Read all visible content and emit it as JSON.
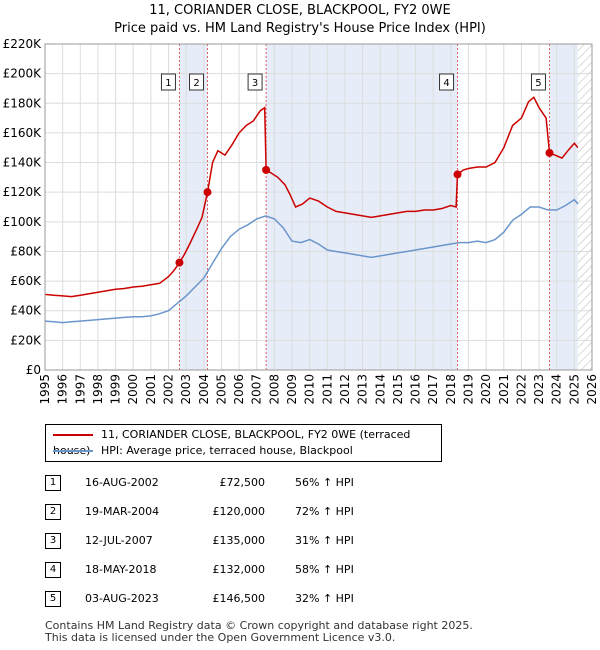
{
  "header": {
    "title": "11, CORIANDER CLOSE, BLACKPOOL, FY2 0WE",
    "subtitle": "Price paid vs. HM Land Registry's House Price Index (HPI)"
  },
  "colors": {
    "price_line": "#cc0000",
    "hpi_line": "#6b96cc",
    "shade": "#e6ecf8",
    "marker_vline": "#e06060",
    "grid": "#dddddd"
  },
  "chart_data": {
    "type": "line",
    "title": "11, CORIANDER CLOSE, BLACKPOOL, FY2 0WE",
    "subtitle": "Price paid vs. HM Land Registry's House Price Index (HPI)",
    "xlim": [
      1995,
      2026
    ],
    "ylim": [
      0,
      220000
    ],
    "grid": true,
    "y_ticks": [
      {
        "value": 0,
        "label": "£0"
      },
      {
        "value": 20000,
        "label": "£20K"
      },
      {
        "value": 40000,
        "label": "£40K"
      },
      {
        "value": 60000,
        "label": "£60K"
      },
      {
        "value": 80000,
        "label": "£80K"
      },
      {
        "value": 100000,
        "label": "£100K"
      },
      {
        "value": 120000,
        "label": "£120K"
      },
      {
        "value": 140000,
        "label": "£140K"
      },
      {
        "value": 160000,
        "label": "£160K"
      },
      {
        "value": 180000,
        "label": "£180K"
      },
      {
        "value": 200000,
        "label": "£200K"
      },
      {
        "value": 220000,
        "label": "£220K"
      }
    ],
    "x_ticks": [
      "1995",
      "1996",
      "1997",
      "1998",
      "1999",
      "2000",
      "2001",
      "2002",
      "2003",
      "2004",
      "2005",
      "2006",
      "2007",
      "2008",
      "2009",
      "2010",
      "2011",
      "2012",
      "2013",
      "2014",
      "2015",
      "2016",
      "2017",
      "2018",
      "2019",
      "2020",
      "2021",
      "2022",
      "2023",
      "2024",
      "2025",
      "2026"
    ],
    "shaded_ranges": [
      [
        2002.62,
        2004.21
      ],
      [
        2007.53,
        2018.38
      ],
      [
        2023.59,
        2025.2
      ]
    ],
    "hatched_range": [
      2025.2,
      2026
    ],
    "series": [
      {
        "name": "11, CORIANDER CLOSE, BLACKPOOL, FY2 0WE (terraced house)",
        "color": "#cc0000",
        "points": [
          [
            1995.0,
            51000
          ],
          [
            1995.5,
            50500
          ],
          [
            1996.0,
            50000
          ],
          [
            1996.5,
            49500
          ],
          [
            1997.0,
            50500
          ],
          [
            1997.5,
            51500
          ],
          [
            1998.0,
            52500
          ],
          [
            1998.5,
            53500
          ],
          [
            1999.0,
            54500
          ],
          [
            1999.5,
            55000
          ],
          [
            2000.0,
            56000
          ],
          [
            2000.5,
            56500
          ],
          [
            2001.0,
            57500
          ],
          [
            2001.5,
            58500
          ],
          [
            2002.0,
            63000
          ],
          [
            2002.3,
            67000
          ],
          [
            2002.62,
            72500
          ],
          [
            2002.9,
            78000
          ],
          [
            2003.2,
            85000
          ],
          [
            2003.6,
            95000
          ],
          [
            2003.9,
            103000
          ],
          [
            2004.21,
            120000
          ],
          [
            2004.5,
            140000
          ],
          [
            2004.8,
            148000
          ],
          [
            2005.2,
            145000
          ],
          [
            2005.6,
            152000
          ],
          [
            2006.0,
            160000
          ],
          [
            2006.4,
            165000
          ],
          [
            2006.8,
            168000
          ],
          [
            2007.2,
            175000
          ],
          [
            2007.45,
            177000
          ],
          [
            2007.53,
            135000
          ],
          [
            2007.8,
            133000
          ],
          [
            2008.2,
            130000
          ],
          [
            2008.6,
            125000
          ],
          [
            2008.9,
            118000
          ],
          [
            2009.2,
            110000
          ],
          [
            2009.6,
            112000
          ],
          [
            2010.0,
            116000
          ],
          [
            2010.5,
            114000
          ],
          [
            2011.0,
            110000
          ],
          [
            2011.5,
            107000
          ],
          [
            2012.0,
            106000
          ],
          [
            2012.5,
            105000
          ],
          [
            2013.0,
            104000
          ],
          [
            2013.5,
            103000
          ],
          [
            2014.0,
            104000
          ],
          [
            2014.5,
            105000
          ],
          [
            2015.0,
            106000
          ],
          [
            2015.5,
            107000
          ],
          [
            2016.0,
            107000
          ],
          [
            2016.5,
            108000
          ],
          [
            2017.0,
            108000
          ],
          [
            2017.5,
            109000
          ],
          [
            2018.0,
            111000
          ],
          [
            2018.3,
            110000
          ],
          [
            2018.38,
            132000
          ],
          [
            2018.7,
            135000
          ],
          [
            2019.0,
            136000
          ],
          [
            2019.5,
            137000
          ],
          [
            2020.0,
            137000
          ],
          [
            2020.5,
            140000
          ],
          [
            2021.0,
            150000
          ],
          [
            2021.5,
            165000
          ],
          [
            2022.0,
            170000
          ],
          [
            2022.4,
            181000
          ],
          [
            2022.7,
            184000
          ],
          [
            2023.0,
            177000
          ],
          [
            2023.4,
            170000
          ],
          [
            2023.59,
            146500
          ],
          [
            2023.9,
            145000
          ],
          [
            2024.3,
            143000
          ],
          [
            2024.7,
            149000
          ],
          [
            2025.0,
            153000
          ],
          [
            2025.2,
            150000
          ]
        ]
      },
      {
        "name": "HPI: Average price, terraced house, Blackpool",
        "color": "#6b96cc",
        "points": [
          [
            1995.0,
            33000
          ],
          [
            1995.5,
            32500
          ],
          [
            1996.0,
            32000
          ],
          [
            1996.5,
            32500
          ],
          [
            1997.0,
            33000
          ],
          [
            1997.5,
            33500
          ],
          [
            1998.0,
            34000
          ],
          [
            1998.5,
            34500
          ],
          [
            1999.0,
            35000
          ],
          [
            1999.5,
            35500
          ],
          [
            2000.0,
            36000
          ],
          [
            2000.5,
            36000
          ],
          [
            2001.0,
            36500
          ],
          [
            2001.5,
            38000
          ],
          [
            2002.0,
            40000
          ],
          [
            2002.5,
            45000
          ],
          [
            2003.0,
            50000
          ],
          [
            2003.5,
            56000
          ],
          [
            2004.0,
            62000
          ],
          [
            2004.5,
            72000
          ],
          [
            2005.0,
            82000
          ],
          [
            2005.5,
            90000
          ],
          [
            2006.0,
            95000
          ],
          [
            2006.5,
            98000
          ],
          [
            2007.0,
            102000
          ],
          [
            2007.5,
            104000
          ],
          [
            2008.0,
            102000
          ],
          [
            2008.5,
            96000
          ],
          [
            2009.0,
            87000
          ],
          [
            2009.5,
            86000
          ],
          [
            2010.0,
            88000
          ],
          [
            2010.5,
            85000
          ],
          [
            2011.0,
            81000
          ],
          [
            2011.5,
            80000
          ],
          [
            2012.0,
            79000
          ],
          [
            2012.5,
            78000
          ],
          [
            2013.0,
            77000
          ],
          [
            2013.5,
            76000
          ],
          [
            2014.0,
            77000
          ],
          [
            2014.5,
            78000
          ],
          [
            2015.0,
            79000
          ],
          [
            2015.5,
            80000
          ],
          [
            2016.0,
            81000
          ],
          [
            2016.5,
            82000
          ],
          [
            2017.0,
            83000
          ],
          [
            2017.5,
            84000
          ],
          [
            2018.0,
            85000
          ],
          [
            2018.5,
            86000
          ],
          [
            2019.0,
            86000
          ],
          [
            2019.5,
            87000
          ],
          [
            2020.0,
            86000
          ],
          [
            2020.5,
            88000
          ],
          [
            2021.0,
            93000
          ],
          [
            2021.5,
            101000
          ],
          [
            2022.0,
            105000
          ],
          [
            2022.5,
            110000
          ],
          [
            2023.0,
            110000
          ],
          [
            2023.5,
            108000
          ],
          [
            2024.0,
            108000
          ],
          [
            2024.5,
            111000
          ],
          [
            2025.0,
            115000
          ],
          [
            2025.2,
            112000
          ]
        ]
      }
    ],
    "sales": [
      {
        "n": "1",
        "x": 2002.62,
        "y": 72500
      },
      {
        "n": "2",
        "x": 2004.21,
        "y": 120000
      },
      {
        "n": "3",
        "x": 2007.53,
        "y": 135000
      },
      {
        "n": "4",
        "x": 2018.38,
        "y": 132000
      },
      {
        "n": "5",
        "x": 2023.59,
        "y": 146500
      }
    ]
  },
  "legend": {
    "price_label": "11, CORIANDER CLOSE, BLACKPOOL, FY2 0WE (terraced house)",
    "hpi_label": "HPI: Average price, terraced house, Blackpool"
  },
  "sales_table": [
    {
      "n": "1",
      "date": "16-AUG-2002",
      "price": "£72,500",
      "hpi": "56% ↑ HPI"
    },
    {
      "n": "2",
      "date": "19-MAR-2004",
      "price": "£120,000",
      "hpi": "72% ↑ HPI"
    },
    {
      "n": "3",
      "date": "12-JUL-2007",
      "price": "£135,000",
      "hpi": "31% ↑ HPI"
    },
    {
      "n": "4",
      "date": "18-MAY-2018",
      "price": "£132,000",
      "hpi": "58% ↑ HPI"
    },
    {
      "n": "5",
      "date": "03-AUG-2023",
      "price": "£146,500",
      "hpi": "32% ↑ HPI"
    }
  ],
  "footer": {
    "line1": "Contains HM Land Registry data © Crown copyright and database right 2025.",
    "line2": "This data is licensed under the Open Government Licence v3.0."
  }
}
